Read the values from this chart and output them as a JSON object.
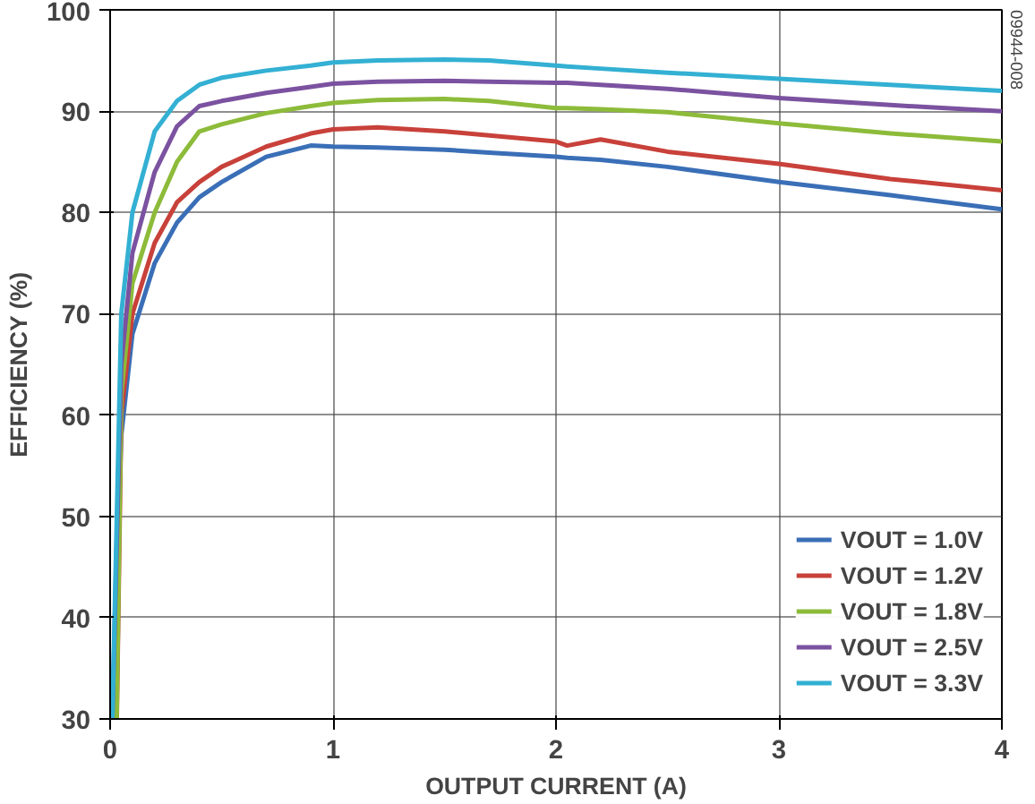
{
  "chart_data": {
    "type": "line",
    "xlabel": "OUTPUT CURRENT (A)",
    "ylabel": "EFFICIENCY (%)",
    "xlim": [
      0,
      4
    ],
    "xticks": [
      0,
      1,
      2,
      3,
      4
    ],
    "ylim": [
      30,
      100
    ],
    "yticks": [
      30,
      40,
      50,
      60,
      70,
      80,
      90,
      100
    ],
    "grid": true,
    "legend": "bottom right",
    "line_style": "solid",
    "marker": "none",
    "annotations": [
      "09944-008"
    ],
    "x": [
      0.01,
      0.05,
      0.1,
      0.2,
      0.3,
      0.4,
      0.5,
      0.7,
      0.9,
      1.0,
      1.2,
      1.5,
      1.7,
      2.0,
      2.05,
      2.2,
      2.5,
      3.0,
      3.5,
      4.0
    ],
    "series": [
      {
        "name": "VOUT = 1.0V",
        "color": "#3a6fb7",
        "values": [
          30,
          58,
          68,
          75,
          79,
          81.5,
          83,
          85.5,
          86.6,
          86.5,
          86.4,
          86.2,
          85.9,
          85.5,
          85.4,
          85.2,
          84.5,
          83,
          81.7,
          80.3
        ]
      },
      {
        "name": "VOUT = 1.2V",
        "color": "#c8413a",
        "values": [
          null,
          60,
          70,
          77,
          81,
          83,
          84.5,
          86.5,
          87.8,
          88.2,
          88.4,
          88,
          87.6,
          87,
          86.6,
          87.2,
          86,
          84.8,
          83.3,
          82.2
        ]
      },
      {
        "name": "VOUT = 1.8V",
        "color": "#8dbb3a",
        "values": [
          null,
          62,
          73,
          80,
          85,
          88,
          88.7,
          89.8,
          90.5,
          90.8,
          91.1,
          91.2,
          91,
          90.3,
          90.3,
          90.2,
          89.9,
          88.8,
          87.8,
          87
        ]
      },
      {
        "name": "VOUT = 2.5V",
        "color": "#7b52a0",
        "values": [
          30,
          65,
          76,
          84,
          88.5,
          90.5,
          91,
          91.8,
          92.4,
          92.7,
          92.9,
          93,
          92.9,
          92.8,
          92.8,
          92.6,
          92.2,
          91.3,
          90.6,
          90
        ]
      },
      {
        "name": "VOUT = 3.3V",
        "color": "#33b0d3",
        "values": [
          30,
          70,
          80,
          88,
          91,
          92.6,
          93.3,
          94,
          94.5,
          94.8,
          95,
          95.1,
          95,
          94.5,
          94.4,
          94.2,
          93.8,
          93.2,
          92.6,
          92
        ]
      }
    ]
  }
}
